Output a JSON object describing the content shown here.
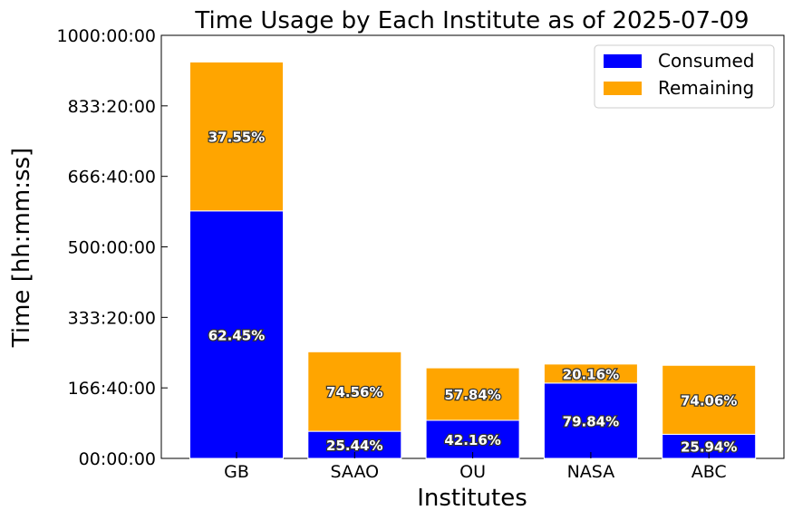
{
  "chart_data": {
    "type": "bar",
    "stacked": true,
    "title": "Time Usage by Each Institute as of 2025-07-09",
    "xlabel": "Institutes",
    "ylabel": "Time [hh:mm:ss]",
    "categories": [
      "GB",
      "SAAO",
      "OU",
      "NASA",
      "ABC"
    ],
    "y_unit": "hours",
    "ylim": [
      0,
      1000
    ],
    "yticks": [
      0,
      166.6667,
      333.3333,
      500,
      666.6667,
      833.3333,
      1000
    ],
    "ytick_labels": [
      "00:00:00",
      "166:40:00",
      "333:20:00",
      "500:00:00",
      "666:40:00",
      "833:20:00",
      "1000:00:00"
    ],
    "series": [
      {
        "name": "Consumed",
        "color": "#0000ff",
        "values": [
          585,
          64,
          90,
          178,
          57
        ],
        "labels": [
          "62.45%",
          "25.44%",
          "42.16%",
          "79.84%",
          "25.94%"
        ]
      },
      {
        "name": "Remaining",
        "color": "#ffa500",
        "values": [
          352,
          188,
          124,
          45,
          163
        ],
        "labels": [
          "37.55%",
          "74.56%",
          "57.84%",
          "20.16%",
          "74.06%"
        ]
      }
    ],
    "legend_position": "top-right",
    "grid": false
  }
}
